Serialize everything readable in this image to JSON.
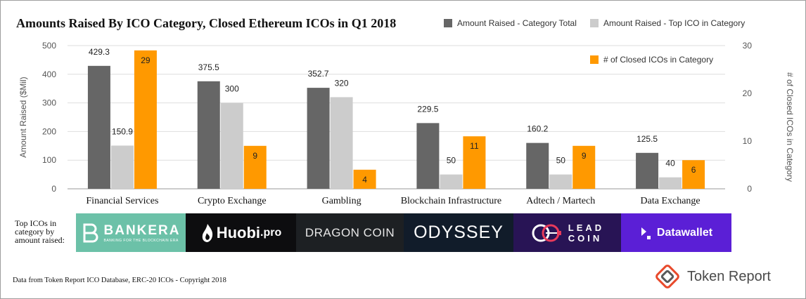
{
  "title": "Amounts Raised By ICO Category, Closed Ethereum ICOs in Q1 2018",
  "colors": {
    "total": "#666666",
    "top": "#cccccc",
    "count": "#ff9900",
    "axis_text": "#555555"
  },
  "chart_data": {
    "type": "bar",
    "title": "Amounts Raised By ICO Category, Closed Ethereum ICOs in Q1 2018",
    "categories": [
      "Financial Services",
      "Crypto Exchange",
      "Gambling",
      "Blockchain Infrastructure",
      "Adtech / Martech",
      "Data Exchange"
    ],
    "series": [
      {
        "name": "Amount Raised - Category Total",
        "axis": "left",
        "values": [
          429.3,
          375.5,
          352.7,
          229.5,
          160.2,
          125.5
        ]
      },
      {
        "name": "Amount Raised - Top ICO in Category",
        "axis": "left",
        "values": [
          150.9,
          300,
          320,
          50,
          50,
          40
        ]
      },
      {
        "name": "# of Closed ICOs in Category",
        "axis": "right",
        "values": [
          29,
          9,
          4,
          11,
          9,
          6
        ]
      }
    ],
    "data_labels": [
      [
        "429.3",
        "150.9",
        "29"
      ],
      [
        "375.5",
        "300",
        "9"
      ],
      [
        "352.7",
        "320",
        "4"
      ],
      [
        "229.5",
        "50",
        "11"
      ],
      [
        "160.2",
        "50",
        "9"
      ],
      [
        "125.5",
        "40",
        "6"
      ]
    ],
    "ylabel": "Amount Raised ($Mil)",
    "y2label": "# of Closed ICOs in Category",
    "ylim": [
      0,
      500
    ],
    "y2lim": [
      0,
      30
    ],
    "yticks": [
      0,
      100,
      200,
      300,
      400,
      500
    ],
    "y2ticks": [
      0,
      10,
      20,
      30
    ],
    "grid": true,
    "legend_position": "top-right"
  },
  "logos": {
    "label": "Top ICOs in category by amount raised:",
    "items": [
      {
        "name": "BANKERA",
        "tagline": "BANKING FOR THE BLOCKCHAIN ERA"
      },
      {
        "name": "Huobi",
        "suffix": ".pro"
      },
      {
        "name": "DRAGON COIN"
      },
      {
        "name": "ODYSSEY"
      },
      {
        "name": "LEAD",
        "name2": "COIN"
      },
      {
        "name": "Datawallet"
      }
    ]
  },
  "source_note": "Data from Token Report ICO Database, ERC-20 ICOs - Copyright 2018",
  "brand": {
    "name": "Token Report",
    "icon": "token-report-logo-icon"
  }
}
